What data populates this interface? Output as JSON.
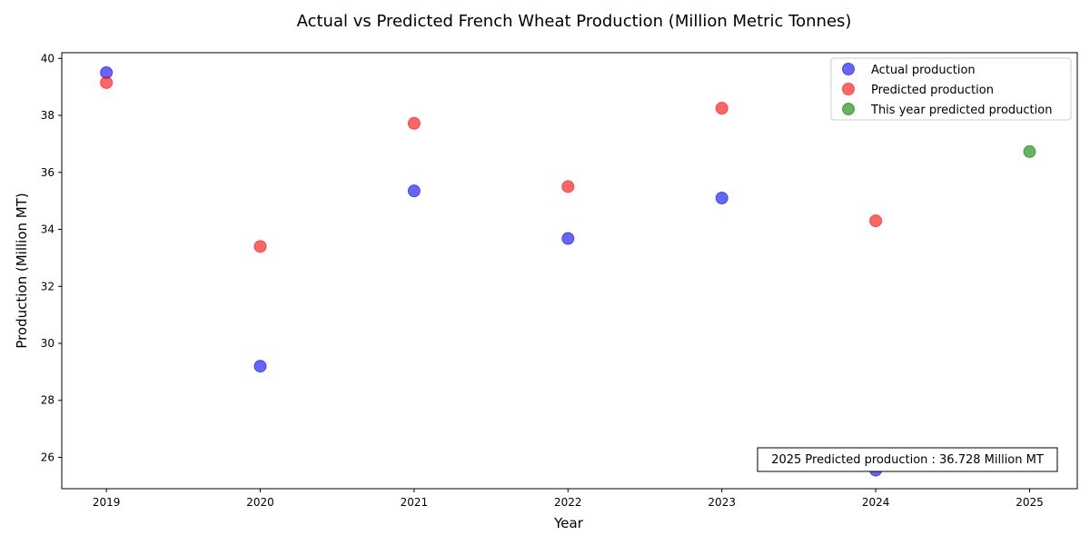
{
  "chart_data": {
    "type": "scatter",
    "title": "Actual vs Predicted French Wheat Production (Million Metric Tonnes)",
    "xlabel": "Year",
    "ylabel": "Production (Million MT)",
    "xlim": [
      2018.71,
      2025.31
    ],
    "ylim": [
      24.9,
      40.2
    ],
    "x_ticks": [
      2019,
      2020,
      2021,
      2022,
      2023,
      2024,
      2025
    ],
    "y_ticks": [
      26,
      28,
      30,
      32,
      34,
      36,
      38,
      40
    ],
    "grid": false,
    "legend_position": "top-right",
    "series": [
      {
        "name": "Actual production",
        "color": "#0000ff",
        "points": [
          {
            "x": 2019,
            "y": 39.5
          },
          {
            "x": 2020,
            "y": 29.2
          },
          {
            "x": 2021,
            "y": 35.35
          },
          {
            "x": 2022,
            "y": 33.68
          },
          {
            "x": 2023,
            "y": 35.1
          },
          {
            "x": 2024,
            "y": 25.55
          }
        ]
      },
      {
        "name": "Predicted production",
        "color": "#ff0000",
        "points": [
          {
            "x": 2019,
            "y": 39.15
          },
          {
            "x": 2020,
            "y": 33.4
          },
          {
            "x": 2021,
            "y": 37.72
          },
          {
            "x": 2022,
            "y": 35.5
          },
          {
            "x": 2023,
            "y": 38.25
          },
          {
            "x": 2024,
            "y": 34.3
          }
        ]
      },
      {
        "name": "This year predicted production",
        "color": "#008000",
        "points": [
          {
            "x": 2025,
            "y": 36.728
          }
        ]
      }
    ],
    "annotation": "2025 Predicted production : 36.728 Million MT"
  }
}
